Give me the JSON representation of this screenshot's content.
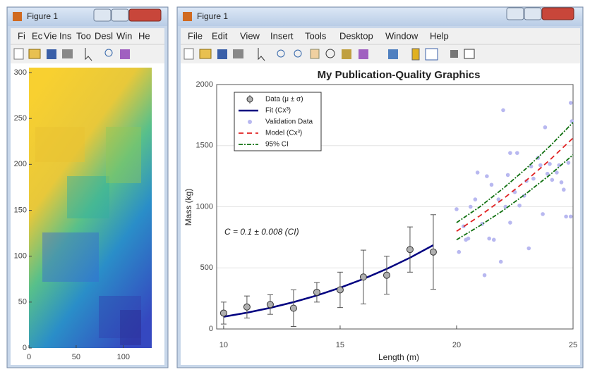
{
  "windows": [
    {
      "title": "Figure 1",
      "menu": [
        "Fi",
        "Ec",
        "Vie",
        "Ins",
        "Too",
        "Desl",
        "Win",
        "He"
      ]
    },
    {
      "title": "Figure 1",
      "menu": [
        "File",
        "Edit",
        "View",
        "Insert",
        "Tools",
        "Desktop",
        "Window",
        "Help"
      ]
    }
  ],
  "image_axes": {
    "xlim": [
      0,
      130
    ],
    "ylim": [
      0,
      300
    ],
    "xticks": [
      0,
      50,
      100
    ],
    "yticks": [
      0,
      50,
      100,
      150,
      200,
      250,
      300
    ]
  },
  "chart_data": {
    "type": "errorbar",
    "title": "My Publication-Quality Graphics",
    "xlabel": "Length (m)",
    "ylabel": "Mass (kg)",
    "annotation": "C = 0.1 ± 0.008 (CI)",
    "xlim": [
      9.7,
      25
    ],
    "ylim": [
      0,
      2000
    ],
    "xticks": [
      10,
      15,
      20,
      25
    ],
    "yticks": [
      0,
      500,
      1000,
      1500,
      2000
    ],
    "grid": true,
    "legend": "upper left",
    "series": [
      {
        "name": "Data (μ ± σ)",
        "style": "errorbar",
        "color": "#b0b0b0",
        "x": [
          10,
          11,
          12,
          13,
          14,
          15,
          16,
          17,
          18,
          19
        ],
        "values": [
          130,
          180,
          200,
          170,
          300,
          320,
          425,
          440,
          650,
          630
        ],
        "errors": [
          90,
          90,
          80,
          150,
          80,
          145,
          220,
          155,
          185,
          305
        ]
      },
      {
        "name": "Fit (Cx³)",
        "style": "line",
        "color": "#000080",
        "x": [
          10,
          11,
          12,
          13,
          14,
          15,
          16,
          17,
          18,
          19
        ],
        "values": [
          100,
          133.1,
          172.8,
          219.7,
          274.4,
          337.5,
          409.6,
          491.3,
          583.2,
          685.9
        ]
      },
      {
        "name": "Validation Data",
        "style": "scatter",
        "color": "#b8b8f0",
        "x": [
          20.0,
          20.1,
          20.3,
          20.4,
          20.5,
          20.6,
          20.8,
          20.9,
          21.1,
          21.2,
          21.3,
          21.4,
          21.5,
          21.6,
          21.8,
          21.9,
          22.0,
          22.1,
          22.2,
          22.3,
          22.3,
          22.5,
          22.6,
          22.7,
          22.9,
          23.0,
          23.1,
          23.2,
          23.3,
          23.5,
          23.6,
          23.7,
          23.8,
          23.9,
          24.0,
          24.1,
          24.3,
          24.4,
          24.5,
          24.6,
          24.7,
          24.8,
          24.9,
          24.95,
          24.9
        ],
        "values": [
          980,
          630,
          840,
          730,
          740,
          1000,
          1060,
          1280,
          860,
          440,
          1250,
          740,
          1180,
          730,
          1060,
          550,
          1790,
          1000,
          1260,
          870,
          1440,
          1120,
          1440,
          1010,
          1090,
          1210,
          660,
          1330,
          1230,
          1400,
          1340,
          940,
          1650,
          1270,
          1350,
          1220,
          1280,
          1340,
          1200,
          1140,
          920,
          1360,
          1850,
          1700,
          920
        ]
      },
      {
        "name": "Model (Cx³)",
        "style": "dashed",
        "color": "#e02020",
        "x": [
          20,
          21,
          22,
          23,
          24,
          25
        ],
        "values": [
          800,
          926.1,
          1064.8,
          1216.7,
          1382.4,
          1562.5
        ]
      },
      {
        "name": "95% CI",
        "style": "band",
        "color": "#107010",
        "x": [
          20,
          21,
          22,
          23,
          24,
          25
        ],
        "lower": [
          730,
          845,
          970,
          1110,
          1260,
          1425
        ],
        "upper": [
          870,
          1000,
          1150,
          1315,
          1495,
          1690
        ]
      }
    ]
  }
}
